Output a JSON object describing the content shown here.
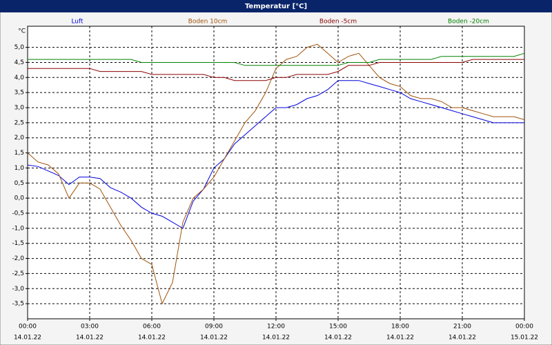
{
  "chart_data": {
    "type": "line",
    "title": "Temperatur [°C]",
    "y_unit": "°C",
    "x": [
      0,
      0.5,
      1,
      1.5,
      2,
      2.5,
      3,
      3.5,
      4,
      4.5,
      5,
      5.5,
      6,
      6.5,
      7,
      7.5,
      8,
      8.5,
      9,
      9.5,
      10,
      10.5,
      11,
      11.5,
      12,
      12.5,
      13,
      13.5,
      14,
      14.5,
      15,
      15.5,
      16,
      16.5,
      17,
      17.5,
      18,
      18.5,
      19,
      19.5,
      20,
      20.5,
      21,
      21.5,
      22,
      22.5,
      23,
      23.5,
      24
    ],
    "series": [
      {
        "name": "Luft",
        "color": "#0000dd",
        "values": [
          1.1,
          1.05,
          0.9,
          0.75,
          0.45,
          0.7,
          0.7,
          0.65,
          0.35,
          0.2,
          0.0,
          -0.3,
          -0.5,
          -0.6,
          -0.8,
          -1.0,
          -0.1,
          0.3,
          1.0,
          1.3,
          1.8,
          2.1,
          2.4,
          2.7,
          3.0,
          3.0,
          3.1,
          3.3,
          3.4,
          3.6,
          3.9,
          3.9,
          3.9,
          3.8,
          3.7,
          3.6,
          3.5,
          3.3,
          3.2,
          3.1,
          3.0,
          2.9,
          2.8,
          2.7,
          2.6,
          2.5,
          2.5,
          2.5,
          2.5
        ]
      },
      {
        "name": "Boden 10cm",
        "color": "#a0520a",
        "values": [
          1.5,
          1.2,
          1.1,
          0.8,
          0.0,
          0.5,
          0.5,
          0.3,
          -0.3,
          -0.9,
          -1.4,
          -2.0,
          -2.2,
          -3.5,
          -2.8,
          -0.8,
          0.0,
          0.3,
          0.7,
          1.3,
          1.9,
          2.5,
          2.9,
          3.5,
          4.3,
          4.6,
          4.7,
          5.0,
          5.1,
          4.8,
          4.5,
          4.7,
          4.8,
          4.4,
          4.0,
          3.8,
          3.7,
          3.4,
          3.3,
          3.3,
          3.2,
          3.0,
          3.0,
          2.9,
          2.8,
          2.7,
          2.7,
          2.7,
          2.6
        ]
      },
      {
        "name": "Boden -5cm",
        "color": "#8b0000",
        "values": [
          4.3,
          4.3,
          4.3,
          4.3,
          4.3,
          4.3,
          4.3,
          4.2,
          4.2,
          4.2,
          4.2,
          4.2,
          4.1,
          4.1,
          4.1,
          4.1,
          4.1,
          4.1,
          4.0,
          4.0,
          3.9,
          3.9,
          3.9,
          3.9,
          4.0,
          4.0,
          4.1,
          4.1,
          4.1,
          4.1,
          4.2,
          4.4,
          4.4,
          4.4,
          4.5,
          4.5,
          4.5,
          4.5,
          4.5,
          4.5,
          4.5,
          4.5,
          4.5,
          4.6,
          4.6,
          4.6,
          4.6,
          4.6,
          4.6
        ]
      },
      {
        "name": "Boden -20cm",
        "color": "#008000",
        "values": [
          4.6,
          4.6,
          4.6,
          4.6,
          4.6,
          4.6,
          4.6,
          4.6,
          4.6,
          4.6,
          4.6,
          4.5,
          4.5,
          4.5,
          4.5,
          4.5,
          4.5,
          4.5,
          4.5,
          4.5,
          4.5,
          4.4,
          4.4,
          4.4,
          4.4,
          4.4,
          4.4,
          4.4,
          4.4,
          4.4,
          4.4,
          4.5,
          4.5,
          4.5,
          4.6,
          4.6,
          4.6,
          4.6,
          4.6,
          4.6,
          4.7,
          4.7,
          4.7,
          4.7,
          4.7,
          4.7,
          4.7,
          4.7,
          4.8
        ]
      }
    ],
    "xlim": [
      0,
      24
    ],
    "xticks": [
      {
        "value": 0,
        "label": "00:00"
      },
      {
        "value": 3,
        "label": "03:00"
      },
      {
        "value": 6,
        "label": "06:00"
      },
      {
        "value": 9,
        "label": "09:00"
      },
      {
        "value": 12,
        "label": "12:00"
      },
      {
        "value": 15,
        "label": "15:00"
      },
      {
        "value": 18,
        "label": "18:00"
      },
      {
        "value": 21,
        "label": "21:00"
      },
      {
        "value": 24,
        "label": "00:00"
      }
    ],
    "xtick_dates": [
      "14.01.22",
      "14.01.22",
      "14.01.22",
      "14.01.22",
      "14.01.22",
      "14.01.22",
      "14.01.22",
      "14.01.22",
      "15.01.22"
    ],
    "ylim": [
      -4,
      5.7
    ],
    "yticks": [
      {
        "value": -3.5,
        "label": "-3,5"
      },
      {
        "value": -3,
        "label": "-3,0"
      },
      {
        "value": -2.5,
        "label": "-2,5"
      },
      {
        "value": -2,
        "label": "-2,0"
      },
      {
        "value": -1.5,
        "label": "-1,5"
      },
      {
        "value": -1,
        "label": "-1,0"
      },
      {
        "value": -0.5,
        "label": "-0,5"
      },
      {
        "value": 0,
        "label": "0,0"
      },
      {
        "value": 0.5,
        "label": "0,5"
      },
      {
        "value": 1,
        "label": "1,0"
      },
      {
        "value": 1.5,
        "label": "1,5"
      },
      {
        "value": 2,
        "label": "2,0"
      },
      {
        "value": 2.5,
        "label": "2,5"
      },
      {
        "value": 3,
        "label": "3,0"
      },
      {
        "value": 3.5,
        "label": "3,5"
      },
      {
        "value": 4,
        "label": "4,0"
      },
      {
        "value": 4.5,
        "label": "4,5"
      },
      {
        "value": 5,
        "label": "5,0"
      }
    ],
    "grid": true
  }
}
